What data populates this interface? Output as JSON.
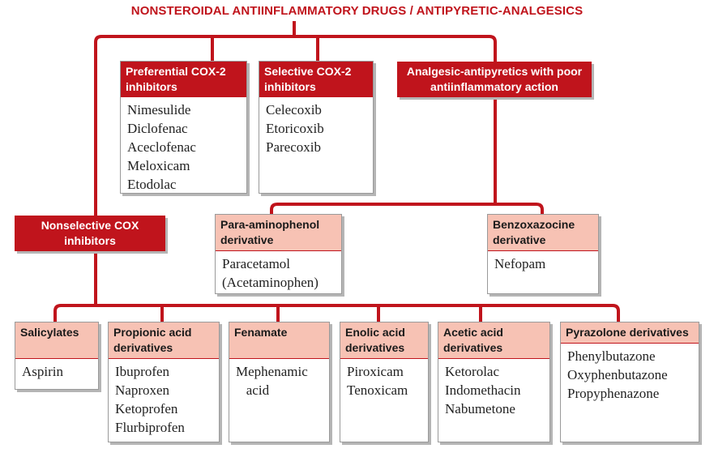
{
  "title": "NONSTEROIDAL ANTIINFLAMMATORY DRUGS / ANTIPYRETIC-ANALGESICS",
  "top_groups": [
    {
      "label": "Preferential COX-2 inhibitors",
      "items": [
        "Nimesulide",
        "Diclofenac",
        "Aceclofenac",
        "Meloxicam",
        "Etodolac"
      ]
    },
    {
      "label": "Selective COX-2 inhibitors",
      "items": [
        "Celecoxib",
        "Etoricoxib",
        "Parecoxib"
      ]
    }
  ],
  "analgesic_group": {
    "label": "Analgesic-antipyretics with poor antiinflammatory action"
  },
  "analgesic_subgroups": [
    {
      "label": "Para-aminophenol derivative",
      "items": [
        "Paracetamol",
        "(Acetaminophen)"
      ]
    },
    {
      "label": "Benzoxazocine derivative",
      "items": [
        "Nefopam"
      ]
    }
  ],
  "nonselective": {
    "label": "Nonselective COX inhibitors"
  },
  "nonselective_groups": [
    {
      "label": "Salicylates",
      "items": [
        "Aspirin"
      ]
    },
    {
      "label": "Propionic acid derivatives",
      "items": [
        "Ibuprofen",
        "Naproxen",
        "Ketoprofen",
        "Flurbiprofen"
      ]
    },
    {
      "label": "Fenamate",
      "items": [
        "Mephenamic",
        "   acid"
      ]
    },
    {
      "label": "Enolic acid derivatives",
      "items": [
        "Piroxicam",
        "Tenoxicam"
      ]
    },
    {
      "label": "Acetic acid derivatives",
      "items": [
        "Ketorolac",
        "Indomethacin",
        "Nabumetone"
      ]
    },
    {
      "label": "Pyrazolone derivatives",
      "items": [
        "Phenylbutazone",
        "Oxyphenbutazone",
        "Propyphenazone"
      ]
    }
  ],
  "colors": {
    "accent": "#c0141c",
    "subheader": "#f7c2b4",
    "text": "#222222"
  }
}
